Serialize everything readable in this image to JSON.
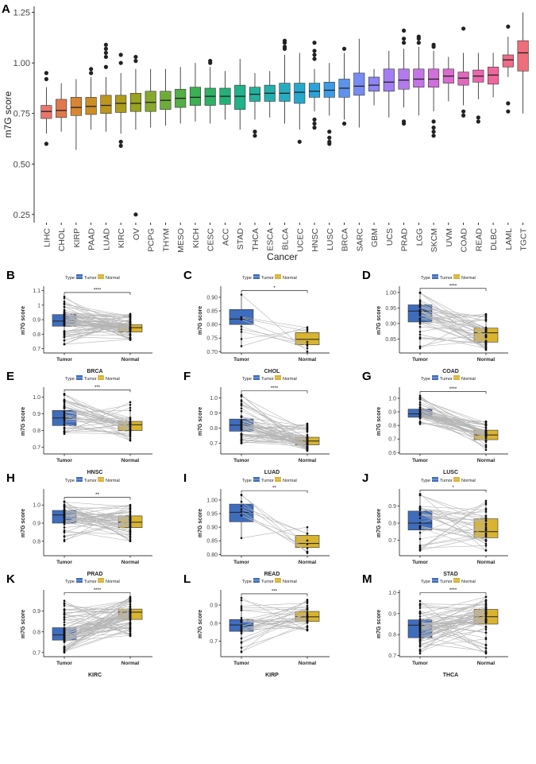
{
  "chart_data": {
    "type": "box",
    "panel_a": {
      "letter": "A",
      "title": "",
      "xlabel": "Cancer",
      "ylabel": "m7G score",
      "ylim": [
        0.21,
        1.28
      ],
      "yticks": [
        0.25,
        0.5,
        0.75,
        1.0,
        1.25
      ],
      "ytick_labels": [
        "0.25",
        "0.50",
        "0.75",
        "1.00",
        "1.25"
      ],
      "boxes": [
        {
          "name": "LIHC",
          "color": "#E8766D",
          "q1": 0.725,
          "med": 0.76,
          "q3": 0.79,
          "lo": 0.65,
          "hi": 0.88,
          "out": [
            0.95,
            0.92,
            0.6
          ]
        },
        {
          "name": "CHOL",
          "color": "#E07A4E",
          "q1": 0.73,
          "med": 0.765,
          "q3": 0.82,
          "lo": 0.66,
          "hi": 0.9,
          "out": []
        },
        {
          "name": "KIRP",
          "color": "#D98532",
          "q1": 0.74,
          "med": 0.78,
          "q3": 0.83,
          "lo": 0.57,
          "hi": 0.92,
          "out": []
        },
        {
          "name": "PAAD",
          "color": "#CC8E23",
          "q1": 0.745,
          "med": 0.785,
          "q3": 0.83,
          "lo": 0.67,
          "hi": 0.93,
          "out": [
            0.97,
            0.95
          ]
        },
        {
          "name": "LUAD",
          "color": "#BE961C",
          "q1": 0.75,
          "med": 0.79,
          "q3": 0.84,
          "lo": 0.66,
          "hi": 0.93,
          "out": [
            1.09,
            1.07,
            1.05,
            1.03,
            0.98
          ]
        },
        {
          "name": "KIRC",
          "color": "#AE9C1C",
          "q1": 0.755,
          "med": 0.8,
          "q3": 0.84,
          "lo": 0.65,
          "hi": 0.95,
          "out": [
            1.04,
            1.0,
            0.61,
            0.59
          ]
        },
        {
          "name": "OV",
          "color": "#9AA221",
          "q1": 0.76,
          "med": 0.8,
          "q3": 0.85,
          "lo": 0.67,
          "hi": 0.97,
          "out": [
            1.03,
            1.01,
            0.25
          ]
        },
        {
          "name": "PCPG",
          "color": "#86A82C",
          "q1": 0.76,
          "med": 0.805,
          "q3": 0.86,
          "lo": 0.68,
          "hi": 0.97,
          "out": []
        },
        {
          "name": "THYM",
          "color": "#6EAC38",
          "q1": 0.77,
          "med": 0.815,
          "q3": 0.86,
          "lo": 0.69,
          "hi": 0.97,
          "out": []
        },
        {
          "name": "MESO",
          "color": "#54AE46",
          "q1": 0.78,
          "med": 0.825,
          "q3": 0.87,
          "lo": 0.7,
          "hi": 0.98,
          "out": []
        },
        {
          "name": "KICH",
          "color": "#3CB055",
          "q1": 0.79,
          "med": 0.83,
          "q3": 0.88,
          "lo": 0.71,
          "hi": 1.0,
          "out": []
        },
        {
          "name": "CESC",
          "color": "#2EB165",
          "q1": 0.79,
          "med": 0.835,
          "q3": 0.875,
          "lo": 0.7,
          "hi": 0.98,
          "out": [
            1.01,
            1.0
          ]
        },
        {
          "name": "ACC",
          "color": "#22B277",
          "q1": 0.795,
          "med": 0.835,
          "q3": 0.875,
          "lo": 0.72,
          "hi": 0.96,
          "out": []
        },
        {
          "name": "STAD",
          "color": "#20B289",
          "q1": 0.77,
          "med": 0.835,
          "q3": 0.89,
          "lo": 0.67,
          "hi": 1.02,
          "out": []
        },
        {
          "name": "THCA",
          "color": "#22B19B",
          "q1": 0.81,
          "med": 0.845,
          "q3": 0.88,
          "lo": 0.72,
          "hi": 0.95,
          "out": [
            0.66,
            0.64
          ]
        },
        {
          "name": "ESCA",
          "color": "#24AFAD",
          "q1": 0.81,
          "med": 0.85,
          "q3": 0.89,
          "lo": 0.73,
          "hi": 0.96,
          "out": []
        },
        {
          "name": "BLCA",
          "color": "#25ACBE",
          "q1": 0.81,
          "med": 0.85,
          "q3": 0.9,
          "lo": 0.7,
          "hi": 1.04,
          "out": [
            1.11,
            1.1,
            1.08,
            1.07
          ]
        },
        {
          "name": "UCEC",
          "color": "#26A8CE",
          "q1": 0.8,
          "med": 0.855,
          "q3": 0.9,
          "lo": 0.67,
          "hi": 1.05,
          "out": [
            0.61
          ]
        },
        {
          "name": "HNSC",
          "color": "#2AA3DC",
          "q1": 0.83,
          "med": 0.86,
          "q3": 0.9,
          "lo": 0.76,
          "hi": 0.97,
          "out": [
            1.1,
            1.06,
            1.04,
            1.02,
            0.72,
            0.7,
            0.68
          ]
        },
        {
          "name": "LUSC",
          "color": "#3D9CE7",
          "q1": 0.83,
          "med": 0.865,
          "q3": 0.905,
          "lo": 0.74,
          "hi": 1.0,
          "out": [
            0.66,
            0.63,
            0.61,
            0.6
          ]
        },
        {
          "name": "BRCA",
          "color": "#5A94EE",
          "q1": 0.83,
          "med": 0.875,
          "q3": 0.92,
          "lo": 0.72,
          "hi": 1.05,
          "out": [
            1.07,
            0.7
          ]
        },
        {
          "name": "SARC",
          "color": "#768CF2",
          "q1": 0.84,
          "med": 0.885,
          "q3": 0.95,
          "lo": 0.68,
          "hi": 1.12,
          "out": []
        },
        {
          "name": "GBM",
          "color": "#8E84F3",
          "q1": 0.86,
          "med": 0.89,
          "q3": 0.93,
          "lo": 0.79,
          "hi": 0.97,
          "out": []
        },
        {
          "name": "UCS",
          "color": "#A27EF2",
          "q1": 0.86,
          "med": 0.905,
          "q3": 0.97,
          "lo": 0.73,
          "hi": 1.06,
          "out": []
        },
        {
          "name": "PRAD",
          "color": "#B379EE",
          "q1": 0.87,
          "med": 0.915,
          "q3": 0.97,
          "lo": 0.78,
          "hi": 1.07,
          "out": [
            1.16,
            1.12,
            1.1,
            0.71,
            0.7
          ]
        },
        {
          "name": "LGG",
          "color": "#C375E6",
          "q1": 0.88,
          "med": 0.92,
          "q3": 0.97,
          "lo": 0.74,
          "hi": 1.08,
          "out": [
            1.13,
            1.12,
            1.1
          ]
        },
        {
          "name": "SKCM",
          "color": "#D070DC",
          "q1": 0.88,
          "med": 0.92,
          "q3": 0.97,
          "lo": 0.76,
          "hi": 1.06,
          "out": [
            1.09,
            1.08,
            0.71,
            0.68,
            0.66,
            0.64
          ]
        },
        {
          "name": "UVM",
          "color": "#DC6BCF",
          "q1": 0.9,
          "med": 0.935,
          "q3": 0.97,
          "lo": 0.81,
          "hi": 1.03,
          "out": []
        },
        {
          "name": "COAD",
          "color": "#E467BF",
          "q1": 0.89,
          "med": 0.925,
          "q3": 0.955,
          "lo": 0.79,
          "hi": 1.05,
          "out": [
            1.17,
            0.76,
            0.74
          ]
        },
        {
          "name": "READ",
          "color": "#EA66AE",
          "q1": 0.905,
          "med": 0.935,
          "q3": 0.965,
          "lo": 0.82,
          "hi": 1.05,
          "out": [
            0.73,
            0.71
          ]
        },
        {
          "name": "DLBC",
          "color": "#EE689C",
          "q1": 0.895,
          "med": 0.94,
          "q3": 0.98,
          "lo": 0.83,
          "hi": 1.05,
          "out": []
        },
        {
          "name": "LAML",
          "color": "#EF6B89",
          "q1": 0.98,
          "med": 1.015,
          "q3": 1.04,
          "lo": 0.93,
          "hi": 1.13,
          "out": [
            1.18,
            0.8,
            0.76
          ]
        },
        {
          "name": "TGCT",
          "color": "#EE6E79",
          "q1": 0.96,
          "med": 1.05,
          "q3": 1.11,
          "lo": 0.75,
          "hi": 1.25,
          "out": []
        }
      ]
    },
    "legend": {
      "title": "Type",
      "entries": [
        {
          "label": "Tumor",
          "color": "#3F6DBD"
        },
        {
          "label": "Normal",
          "color": "#D9B42F"
        }
      ]
    },
    "paired_panels": [
      {
        "letter": "B",
        "xlabel": "BRCA",
        "ylabel": "m7G score",
        "sig": "****",
        "ylim": [
          0.67,
          1.12
        ],
        "yticks": [
          0.7,
          0.8,
          0.9,
          1.0,
          1.1
        ],
        "ytick_labels": [
          "0.7",
          "0.8",
          "0.9",
          "1",
          "1.1"
        ],
        "n": 70,
        "tumor": {
          "q1": 0.855,
          "med": 0.89,
          "q3": 0.935,
          "lo": 0.73,
          "hi": 1.06
        },
        "normal": {
          "q1": 0.815,
          "med": 0.845,
          "q3": 0.865,
          "lo": 0.76,
          "hi": 0.94
        },
        "seed": 11
      },
      {
        "letter": "C",
        "xlabel": "CHOL",
        "ylabel": "m7G score",
        "sig": "*",
        "ylim": [
          0.695,
          0.935
        ],
        "yticks": [
          0.7,
          0.75,
          0.8,
          0.85,
          0.9
        ],
        "ytick_labels": [
          "0.70",
          "0.75",
          "0.80",
          "0.85",
          "0.90"
        ],
        "n": 9,
        "tumor": {
          "q1": 0.8,
          "med": 0.82,
          "q3": 0.855,
          "lo": 0.72,
          "hi": 0.91
        },
        "normal": {
          "q1": 0.725,
          "med": 0.745,
          "q3": 0.77,
          "lo": 0.7,
          "hi": 0.79
        },
        "seed": 23
      },
      {
        "letter": "D",
        "xlabel": "COAD",
        "ylabel": "m7G score",
        "sig": "****",
        "ylim": [
          0.805,
          1.015
        ],
        "yticks": [
          0.85,
          0.9,
          0.95,
          1.0
        ],
        "ytick_labels": [
          "0.85",
          "0.90",
          "0.95",
          "1.00"
        ],
        "n": 40,
        "tumor": {
          "q1": 0.905,
          "med": 0.94,
          "q3": 0.96,
          "lo": 0.82,
          "hi": 1.0
        },
        "normal": {
          "q1": 0.84,
          "med": 0.87,
          "q3": 0.885,
          "lo": 0.815,
          "hi": 0.93
        },
        "seed": 37
      },
      {
        "letter": "E",
        "xlabel": "HNSC",
        "ylabel": "m7G score",
        "sig": "***",
        "ylim": [
          0.66,
          1.05
        ],
        "yticks": [
          0.7,
          0.8,
          0.9,
          1.0
        ],
        "ytick_labels": [
          "0.7",
          "0.8",
          "0.9",
          "1.0"
        ],
        "n": 40,
        "tumor": {
          "q1": 0.83,
          "med": 0.875,
          "q3": 0.92,
          "lo": 0.78,
          "hi": 1.02
        },
        "normal": {
          "q1": 0.8,
          "med": 0.835,
          "q3": 0.855,
          "lo": 0.74,
          "hi": 0.97
        },
        "seed": 41
      },
      {
        "letter": "F",
        "xlabel": "LUAD",
        "ylabel": "m7G score",
        "sig": "****",
        "ylim": [
          0.63,
          1.06
        ],
        "yticks": [
          0.7,
          0.8,
          0.9,
          1.0
        ],
        "ytick_labels": [
          "0.7",
          "0.8",
          "0.9",
          "1.0"
        ],
        "n": 55,
        "tumor": {
          "q1": 0.78,
          "med": 0.82,
          "q3": 0.86,
          "lo": 0.7,
          "hi": 1.02
        },
        "normal": {
          "q1": 0.69,
          "med": 0.715,
          "q3": 0.74,
          "lo": 0.65,
          "hi": 0.83
        },
        "seed": 53
      },
      {
        "letter": "G",
        "xlabel": "LUSC",
        "ylabel": "m7G score",
        "sig": "****",
        "ylim": [
          0.59,
          1.07
        ],
        "yticks": [
          0.6,
          0.7,
          0.8,
          0.9,
          1.0
        ],
        "ytick_labels": [
          "0.6",
          "0.7",
          "0.8",
          "0.9",
          "1.0"
        ],
        "n": 50,
        "tumor": {
          "q1": 0.86,
          "med": 0.885,
          "q3": 0.92,
          "lo": 0.81,
          "hi": 1.02
        },
        "normal": {
          "q1": 0.695,
          "med": 0.73,
          "q3": 0.765,
          "lo": 0.62,
          "hi": 0.83
        },
        "seed": 61
      },
      {
        "letter": "H",
        "xlabel": "PRAD",
        "ylabel": "m7G score",
        "sig": "**",
        "ylim": [
          0.72,
          1.08
        ],
        "yticks": [
          0.8,
          0.9,
          1.0
        ],
        "ytick_labels": [
          "0.8",
          "0.9",
          "1.0"
        ],
        "n": 50,
        "tumor": {
          "q1": 0.9,
          "med": 0.945,
          "q3": 0.97,
          "lo": 0.8,
          "hi": 1.02
        },
        "normal": {
          "q1": 0.875,
          "med": 0.905,
          "q3": 0.94,
          "lo": 0.8,
          "hi": 1.0
        },
        "seed": 71
      },
      {
        "letter": "I",
        "xlabel": "READ",
        "ylabel": "m7G score",
        "sig": "**",
        "ylim": [
          0.795,
          1.035
        ],
        "yticks": [
          0.8,
          0.85,
          0.9,
          0.95,
          1.0
        ],
        "ytick_labels": [
          "0.80",
          "0.85",
          "0.90",
          "0.95",
          "1.00"
        ],
        "n": 9,
        "tumor": {
          "q1": 0.92,
          "med": 0.955,
          "q3": 0.985,
          "lo": 0.86,
          "hi": 1.02
        },
        "normal": {
          "q1": 0.825,
          "med": 0.84,
          "q3": 0.87,
          "lo": 0.805,
          "hi": 0.9
        },
        "seed": 83
      },
      {
        "letter": "J",
        "xlabel": "STAD",
        "ylabel": "m7G score",
        "sig": "*",
        "ylim": [
          0.61,
          0.99
        ],
        "yticks": [
          0.7,
          0.8,
          0.9
        ],
        "ytick_labels": [
          "0.7",
          "0.8",
          "0.9"
        ],
        "n": 32,
        "tumor": {
          "q1": 0.76,
          "med": 0.8,
          "q3": 0.87,
          "lo": 0.64,
          "hi": 0.97
        },
        "normal": {
          "q1": 0.715,
          "med": 0.75,
          "q3": 0.825,
          "lo": 0.64,
          "hi": 0.93
        },
        "seed": 97
      },
      {
        "letter": "K",
        "xlabel": "KIRC",
        "ylabel": "m7G score",
        "sig": "****",
        "ylim": [
          0.68,
          0.995
        ],
        "yticks": [
          0.7,
          0.8,
          0.9
        ],
        "ytick_labels": [
          "0.7",
          "0.8",
          "0.9"
        ],
        "n": 70,
        "tumor": {
          "q1": 0.76,
          "med": 0.785,
          "q3": 0.82,
          "lo": 0.7,
          "hi": 0.95
        },
        "normal": {
          "q1": 0.86,
          "med": 0.895,
          "q3": 0.91,
          "lo": 0.78,
          "hi": 0.97
        },
        "seed": 101
      },
      {
        "letter": "L",
        "xlabel": "KIRP",
        "ylabel": "m7G score",
        "sig": "***",
        "ylim": [
          0.615,
          0.975
        ],
        "yticks": [
          0.7,
          0.8,
          0.9
        ],
        "ytick_labels": [
          "0.7",
          "0.8",
          "0.9"
        ],
        "n": 32,
        "tumor": {
          "q1": 0.755,
          "med": 0.79,
          "q3": 0.82,
          "lo": 0.64,
          "hi": 0.94
        },
        "normal": {
          "q1": 0.81,
          "med": 0.835,
          "q3": 0.865,
          "lo": 0.76,
          "hi": 0.93
        },
        "seed": 113
      },
      {
        "letter": "M",
        "xlabel": "THCA",
        "ylabel": "m7G score",
        "sig": "****",
        "ylim": [
          0.695,
          1.005
        ],
        "yticks": [
          0.7,
          0.8,
          0.9,
          1.0
        ],
        "ytick_labels": [
          "0.7",
          "0.8",
          "0.9",
          "1.0"
        ],
        "n": 58,
        "tumor": {
          "q1": 0.785,
          "med": 0.845,
          "q3": 0.87,
          "lo": 0.71,
          "hi": 0.96
        },
        "normal": {
          "q1": 0.85,
          "med": 0.885,
          "q3": 0.92,
          "lo": 0.71,
          "hi": 0.98
        },
        "seed": 127
      }
    ]
  }
}
